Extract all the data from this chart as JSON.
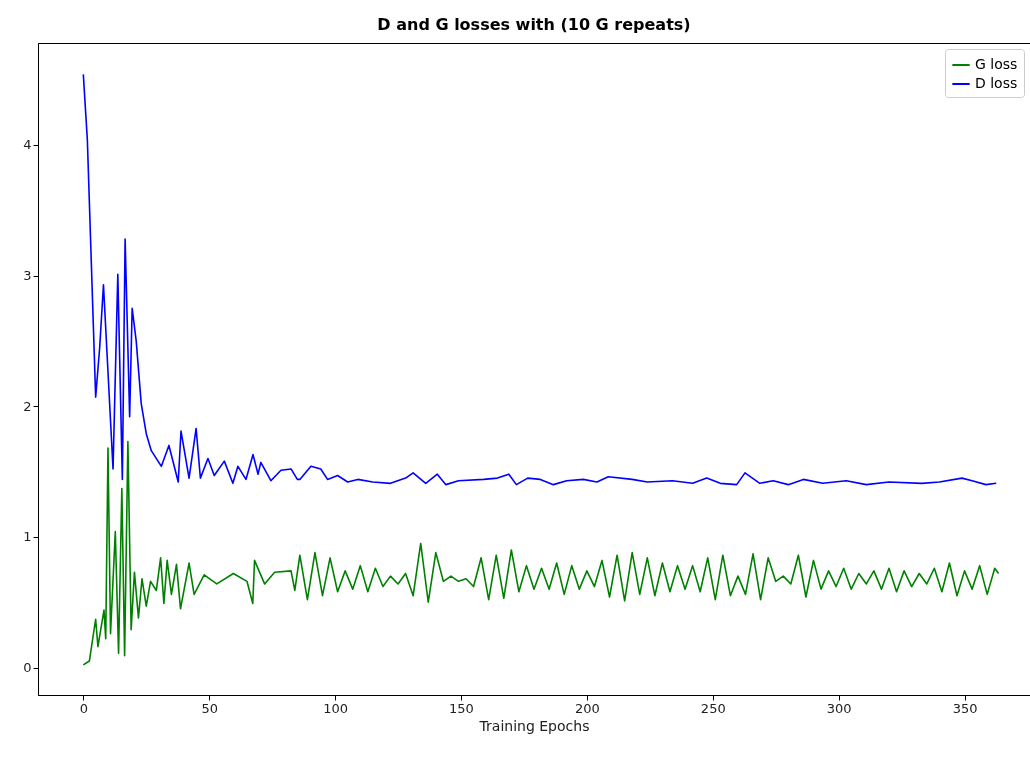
{
  "chart_data": {
    "type": "line",
    "title": "D and G losses with (10 G repeats)",
    "xlabel": "Training Epochs",
    "xlim": [
      -18,
      376
    ],
    "ylim": [
      -0.21,
      4.78
    ],
    "xticks": [
      0,
      50,
      100,
      150,
      200,
      250,
      300,
      350
    ],
    "yticks": [
      0,
      1,
      2,
      3,
      4
    ],
    "grid": false,
    "legend": "top right",
    "line_style": "solid",
    "series": [
      {
        "name": "G loss",
        "color": "#008000",
        "x": [
          0,
          2.4,
          4.9,
          5.8,
          8.2,
          8.9,
          9.8,
          10.8,
          12.7,
          14,
          15.3,
          16.4,
          17.7,
          19,
          20.3,
          21.9,
          23.3,
          25,
          26.7,
          29,
          30.7,
          32,
          33.3,
          35,
          37,
          38.6,
          42,
          44,
          48,
          53,
          59.6,
          65,
          67.3,
          68,
          72,
          76,
          82.5,
          84,
          86,
          89,
          92,
          95,
          98,
          101,
          104,
          107,
          110,
          113,
          116,
          119,
          122,
          125,
          128,
          131,
          134,
          137,
          140,
          143,
          146,
          149,
          152,
          155,
          158,
          161,
          164,
          167,
          170,
          173,
          176,
          179,
          182,
          185,
          188,
          191,
          194,
          197,
          200,
          203,
          206,
          209,
          212,
          215,
          218,
          221,
          224,
          227,
          230,
          233,
          236,
          239,
          242,
          245,
          248,
          251,
          254,
          257,
          260,
          263,
          266,
          269,
          272,
          275,
          278,
          281,
          284,
          287,
          290,
          293,
          296,
          299,
          302,
          305,
          308,
          311,
          314,
          317,
          320,
          323,
          326,
          329,
          332,
          335,
          338,
          341,
          344,
          347,
          350,
          353,
          356,
          359,
          362,
          363.5
        ],
        "values": [
          0.02,
          0.05,
          0.37,
          0.16,
          0.44,
          0.22,
          1.68,
          0.26,
          1.04,
          0.11,
          1.37,
          0.09,
          1.73,
          0.29,
          0.73,
          0.38,
          0.68,
          0.47,
          0.66,
          0.59,
          0.84,
          0.49,
          0.82,
          0.56,
          0.79,
          0.45,
          0.8,
          0.56,
          0.71,
          0.64,
          0.72,
          0.66,
          0.49,
          0.82,
          0.64,
          0.73,
          0.74,
          0.59,
          0.86,
          0.52,
          0.88,
          0.55,
          0.84,
          0.58,
          0.74,
          0.6,
          0.78,
          0.58,
          0.76,
          0.62,
          0.7,
          0.64,
          0.72,
          0.55,
          0.95,
          0.5,
          0.88,
          0.66,
          0.7,
          0.66,
          0.68,
          0.62,
          0.84,
          0.52,
          0.86,
          0.53,
          0.9,
          0.58,
          0.78,
          0.6,
          0.76,
          0.6,
          0.8,
          0.56,
          0.78,
          0.6,
          0.74,
          0.62,
          0.82,
          0.54,
          0.86,
          0.51,
          0.88,
          0.56,
          0.84,
          0.55,
          0.8,
          0.58,
          0.78,
          0.6,
          0.78,
          0.58,
          0.84,
          0.52,
          0.86,
          0.55,
          0.7,
          0.56,
          0.87,
          0.52,
          0.84,
          0.66,
          0.7,
          0.64,
          0.86,
          0.54,
          0.82,
          0.6,
          0.74,
          0.62,
          0.76,
          0.6,
          0.72,
          0.64,
          0.74,
          0.6,
          0.76,
          0.58,
          0.74,
          0.62,
          0.72,
          0.64,
          0.76,
          0.58,
          0.8,
          0.55,
          0.74,
          0.6,
          0.78,
          0.56,
          0.76,
          0.72
        ]
      },
      {
        "name": "D loss",
        "color": "#0000ff",
        "x": [
          0,
          1.6,
          4.9,
          6.5,
          8,
          11.8,
          13.7,
          15.5,
          16.6,
          18.4,
          19.4,
          21,
          23,
          25,
          27,
          31,
          34,
          37.7,
          38.8,
          42,
          44.8,
          46.5,
          49.5,
          52,
          56,
          59.4,
          61.4,
          64.6,
          67.4,
          69.4,
          70.5,
          74.5,
          78.5,
          82.5,
          85,
          86,
          90.4,
          94.3,
          97,
          101,
          105,
          109,
          115,
          122,
          128,
          131,
          136,
          140.6,
          144,
          149,
          159,
          164.5,
          169,
          172,
          176.5,
          181.5,
          186.7,
          192,
          198.6,
          204,
          208.5,
          218,
          224,
          234,
          242,
          247.6,
          253,
          259.5,
          262.8,
          268.7,
          274,
          280,
          286,
          293.7,
          303,
          311,
          320,
          333,
          340,
          349,
          353,
          358.5,
          362.6
        ],
        "values": [
          4.54,
          4.04,
          2.07,
          2.45,
          2.93,
          1.52,
          3.01,
          1.44,
          3.28,
          1.92,
          2.75,
          2.5,
          2.02,
          1.79,
          1.66,
          1.54,
          1.7,
          1.42,
          1.81,
          1.45,
          1.83,
          1.45,
          1.6,
          1.47,
          1.58,
          1.41,
          1.54,
          1.44,
          1.63,
          1.48,
          1.57,
          1.43,
          1.51,
          1.52,
          1.44,
          1.44,
          1.54,
          1.52,
          1.44,
          1.47,
          1.42,
          1.44,
          1.42,
          1.41,
          1.45,
          1.49,
          1.41,
          1.48,
          1.4,
          1.43,
          1.44,
          1.45,
          1.48,
          1.4,
          1.45,
          1.44,
          1.4,
          1.43,
          1.44,
          1.42,
          1.46,
          1.44,
          1.42,
          1.43,
          1.41,
          1.45,
          1.41,
          1.4,
          1.49,
          1.41,
          1.43,
          1.4,
          1.44,
          1.41,
          1.43,
          1.4,
          1.42,
          1.41,
          1.42,
          1.45,
          1.43,
          1.4,
          1.41
        ]
      }
    ]
  }
}
